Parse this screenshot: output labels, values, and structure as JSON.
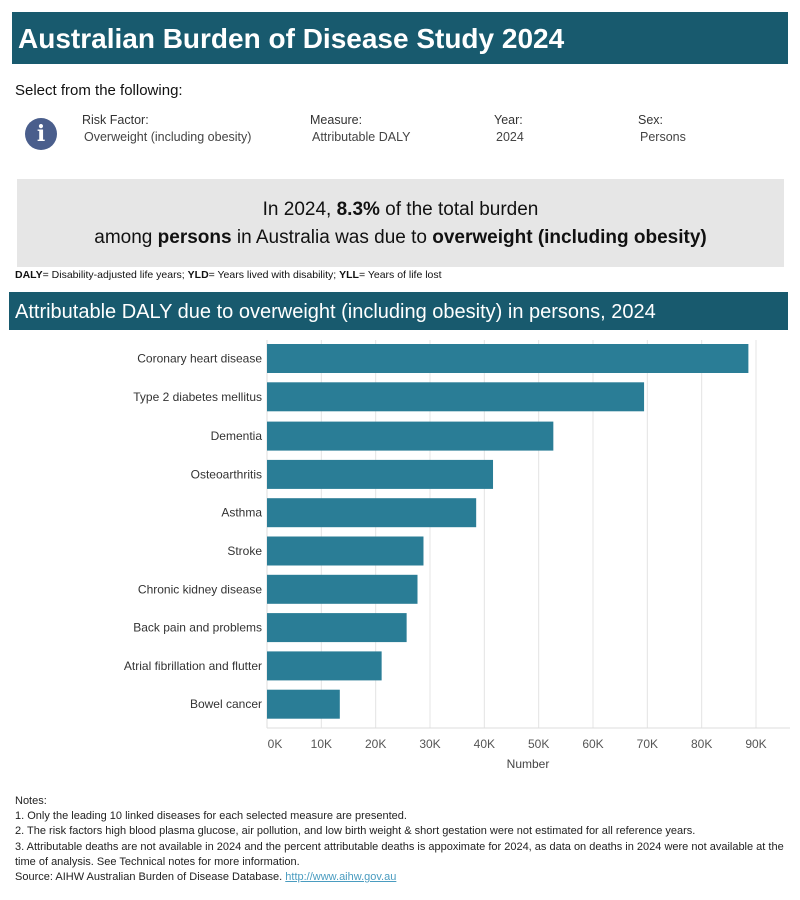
{
  "header": {
    "title": "Australian Burden of Disease Study 2024"
  },
  "filters": {
    "intro": "Select from the following:",
    "info_icon": "info-icon",
    "items": [
      {
        "label": "Risk Factor:",
        "value": "Overweight (including obesity)"
      },
      {
        "label": "Measure:",
        "value": "Attributable DALY"
      },
      {
        "label": "Year:",
        "value": "2024"
      },
      {
        "label": "Sex:",
        "value": "Persons"
      }
    ]
  },
  "summary": {
    "l1_a": "In 2024, ",
    "l1_b": "8.3%",
    "l1_c": " of the total burden",
    "l2_a": "among ",
    "l2_b": "persons",
    "l2_c": " in Australia was due to ",
    "l2_d": "overweight (including obesity)"
  },
  "abbreviations": {
    "daly_k": "DALY",
    "daly_v": "= Disability-adjusted life years; ",
    "yld_k": "YLD",
    "yld_v": "= Years lived with disability; ",
    "yll_k": "YLL",
    "yll_v": "= Years of life lost"
  },
  "chart_data": {
    "type": "bar",
    "orientation": "horizontal",
    "title": "Attributable DALY due to overweight (including obesity) in persons, 2024",
    "xlabel": "Number",
    "ylabel": "",
    "xlim": [
      0,
      92000
    ],
    "grid": true,
    "bar_color": "#2a7d96",
    "ticks": [
      {
        "v": 0,
        "label": "0K"
      },
      {
        "v": 10000,
        "label": "10K"
      },
      {
        "v": 20000,
        "label": "20K"
      },
      {
        "v": 30000,
        "label": "30K"
      },
      {
        "v": 40000,
        "label": "40K"
      },
      {
        "v": 50000,
        "label": "50K"
      },
      {
        "v": 60000,
        "label": "60K"
      },
      {
        "v": 70000,
        "label": "70K"
      },
      {
        "v": 80000,
        "label": "80K"
      },
      {
        "v": 90000,
        "label": "90K"
      }
    ],
    "categories": [
      "Coronary heart disease",
      "Type 2 diabetes mellitus",
      "Dementia",
      "Osteoarthritis",
      "Asthma",
      "Stroke",
      "Chronic kidney disease",
      "Back pain and problems",
      "Atrial fibrillation and flutter",
      "Bowel cancer"
    ],
    "values": [
      88600,
      69400,
      52700,
      41600,
      38500,
      28800,
      27700,
      25700,
      21100,
      13400
    ]
  },
  "notes": {
    "heading": "Notes:",
    "items": [
      "1. Only the leading 10 linked diseases for each selected measure are presented.",
      "2. The risk factors high blood plasma glucose, air pollution, and low birth weight & short gestation were not estimated for all reference years.",
      "3. Attributable deaths are not available in 2024 and the percent attributable deaths is appoximate for 2024, as data on deaths in 2024 were not available at the time of analysis. See Technical notes for more information."
    ],
    "source": "Source: AIHW Australian Burden of Disease Database. ",
    "link": "http://www.aihw.gov.au"
  }
}
